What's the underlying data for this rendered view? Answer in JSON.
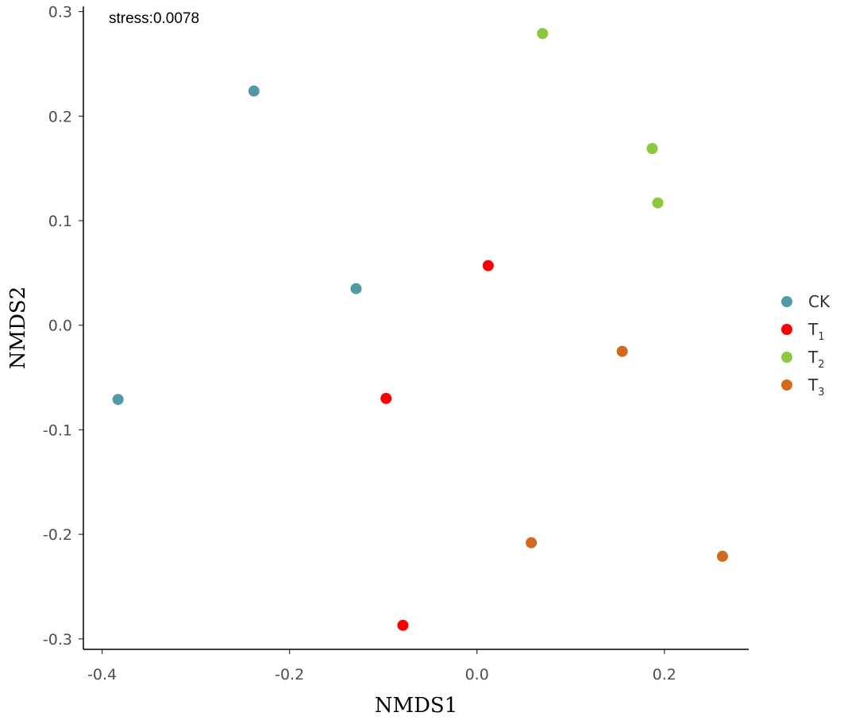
{
  "chart_data": {
    "type": "scatter",
    "xlabel": "NMDS1",
    "ylabel": "NMDS2",
    "annotation": "stress:0.0078",
    "xlim": [
      -0.42,
      0.29
    ],
    "ylim": [
      -0.31,
      0.305
    ],
    "x_ticks": [
      {
        "value": -0.4,
        "label": "-0.4"
      },
      {
        "value": -0.2,
        "label": "-0.2"
      },
      {
        "value": 0.0,
        "label": "0.0"
      },
      {
        "value": 0.2,
        "label": "0.2"
      }
    ],
    "y_ticks": [
      {
        "value": 0.3,
        "label": "0.3"
      },
      {
        "value": 0.2,
        "label": "0.2"
      },
      {
        "value": 0.1,
        "label": "0.1"
      },
      {
        "value": 0.0,
        "label": "0.0"
      },
      {
        "value": -0.1,
        "label": "-0.1"
      },
      {
        "value": -0.2,
        "label": "-0.2"
      },
      {
        "value": -0.3,
        "label": "-0.3"
      }
    ],
    "grid": false,
    "legend_position": "right",
    "series": [
      {
        "name": "CK",
        "label_main": "CK",
        "label_sub": "",
        "color": "#4f9aa4",
        "points": [
          {
            "x": -0.238,
            "y": 0.224
          },
          {
            "x": -0.129,
            "y": 0.035
          },
          {
            "x": -0.383,
            "y": -0.071
          }
        ]
      },
      {
        "name": "T1",
        "label_main": "T",
        "label_sub": "1",
        "color": "#ff0000",
        "points": [
          {
            "x": 0.012,
            "y": 0.057
          },
          {
            "x": -0.097,
            "y": -0.07
          },
          {
            "x": -0.079,
            "y": -0.287
          }
        ]
      },
      {
        "name": "T2",
        "label_main": "T",
        "label_sub": "2",
        "color": "#8dc63f",
        "points": [
          {
            "x": 0.07,
            "y": 0.279
          },
          {
            "x": 0.187,
            "y": 0.169
          },
          {
            "x": 0.193,
            "y": 0.117
          }
        ]
      },
      {
        "name": "T3",
        "label_main": "T",
        "label_sub": "3",
        "color": "#d2691e",
        "points": [
          {
            "x": 0.155,
            "y": -0.025
          },
          {
            "x": 0.058,
            "y": -0.208
          },
          {
            "x": 0.262,
            "y": -0.221
          }
        ]
      }
    ]
  }
}
